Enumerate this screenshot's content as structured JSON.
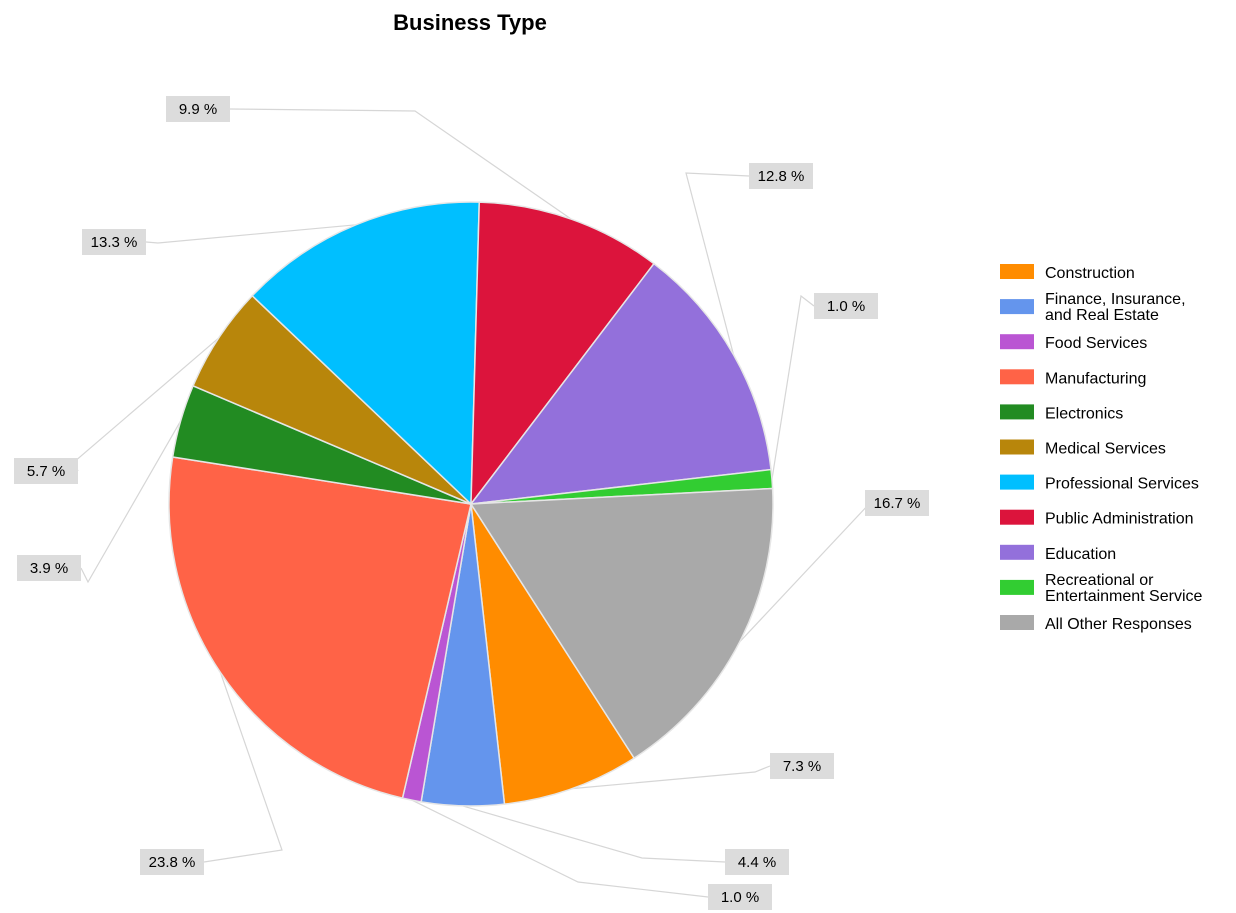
{
  "chart_data": {
    "type": "pie",
    "title": "Business Type",
    "legend_position": "right",
    "slices": [
      {
        "label": "Construction",
        "value": 7.3,
        "display": "7.3 %",
        "color": "#FF8C00"
      },
      {
        "label": "Finance, Insurance, and Real Estate",
        "lines": [
          "Finance, Insurance,",
          "and Real Estate"
        ],
        "value": 4.4,
        "display": "4.4 %",
        "color": "#6495ED"
      },
      {
        "label": "Food Services",
        "value": 1.0,
        "display": "1.0 %",
        "color": "#BA55D3"
      },
      {
        "label": "Manufacturing",
        "value": 23.8,
        "display": "23.8 %",
        "color": "#FF6347"
      },
      {
        "label": "Electronics",
        "value": 3.9,
        "display": "3.9 %",
        "color": "#228B22"
      },
      {
        "label": "Medical Services",
        "value": 5.7,
        "display": "5.7 %",
        "color": "#B8860B"
      },
      {
        "label": "Professional Services",
        "value": 13.3,
        "display": "13.3 %",
        "color": "#00BFFF"
      },
      {
        "label": "Public Administration",
        "value": 9.9,
        "display": "9.9 %",
        "color": "#DC143C"
      },
      {
        "label": "Education",
        "value": 12.8,
        "display": "12.8 %",
        "color": "#9370DB"
      },
      {
        "label": "Recreational or Entertainment Service",
        "lines": [
          "Recreational or",
          "Entertainment Service"
        ],
        "value": 1.0,
        "display": "1.0 %",
        "color": "#32CD32"
      },
      {
        "label": "All Other Responses",
        "value": 16.7,
        "display": "16.7 %",
        "color": "#A9A9A9"
      }
    ]
  }
}
